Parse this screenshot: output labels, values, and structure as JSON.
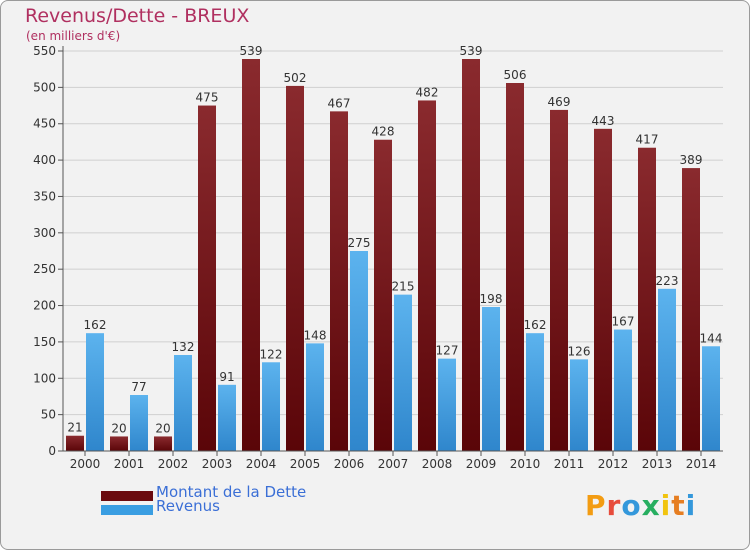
{
  "title": "Revenus/Dette - BREUX",
  "subtitle": "(en milliers d'€)",
  "logo": {
    "text": "Proxiti",
    "letters": [
      "P",
      "r",
      "o",
      "x",
      "i",
      "t",
      "i"
    ],
    "colors": [
      "#f39c12",
      "#e74c3c",
      "#3498db",
      "#27ae60",
      "#f1c40f",
      "#e67e22",
      "#3498db"
    ]
  },
  "legend": [
    {
      "label": "Montant de la Dette",
      "color": "#6b0a0e"
    },
    {
      "label": "Revenus",
      "color": "#3a9ee2"
    }
  ],
  "chart_data": {
    "type": "bar",
    "categories": [
      "2000",
      "2001",
      "2002",
      "2003",
      "2004",
      "2005",
      "2006",
      "2007",
      "2008",
      "2009",
      "2010",
      "2011",
      "2012",
      "2013",
      "2014"
    ],
    "series": [
      {
        "name": "Montant de la Dette",
        "color": "#7a1a1f",
        "values": [
          21,
          20,
          20,
          475,
          539,
          502,
          467,
          428,
          482,
          539,
          506,
          469,
          443,
          417,
          389
        ]
      },
      {
        "name": "Revenus",
        "color": "#3a9ee2",
        "values": [
          162,
          77,
          132,
          91,
          122,
          148,
          275,
          215,
          127,
          198,
          162,
          126,
          167,
          223,
          144
        ]
      }
    ],
    "ylim": [
      0,
      550
    ],
    "yticks": [
      0,
      50,
      100,
      150,
      200,
      250,
      300,
      350,
      400,
      450,
      500,
      550
    ],
    "grid": true
  }
}
